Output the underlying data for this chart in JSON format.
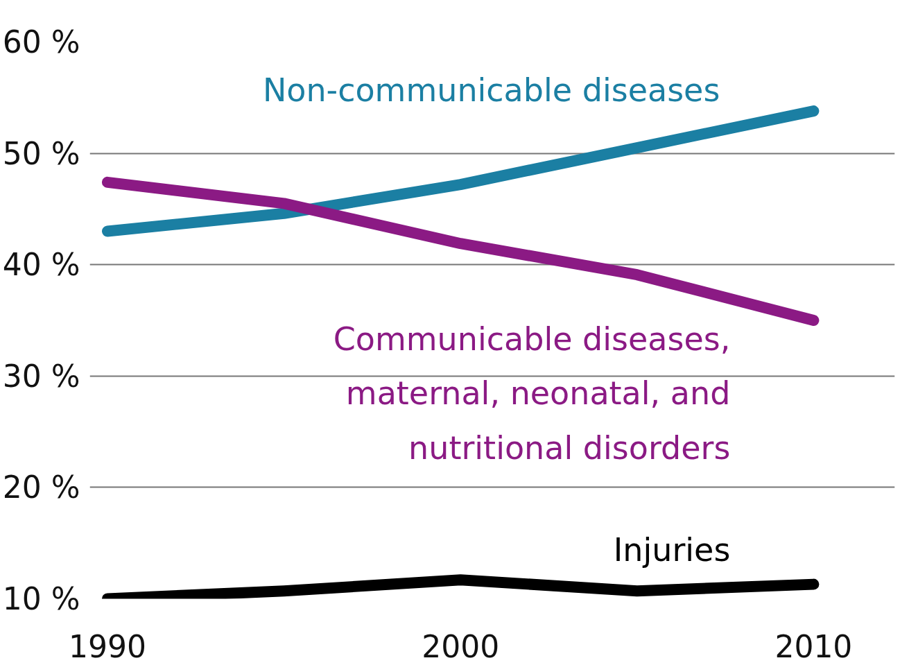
{
  "chart_data": {
    "type": "line",
    "x": [
      1990,
      1995,
      2000,
      2005,
      2010
    ],
    "series": [
      {
        "name": "Non-communicable diseases",
        "color": "#1b7fa3",
        "values": [
          43.0,
          44.6,
          47.2,
          50.5,
          53.8
        ]
      },
      {
        "name": "Communicable diseases,\nmaternal, neonatal, and\nnutritional disorders",
        "color": "#8b1a84",
        "values": [
          47.4,
          45.5,
          41.9,
          39.1,
          35.0
        ]
      },
      {
        "name": "Injuries",
        "color": "#000000",
        "values": [
          10.0,
          10.7,
          11.7,
          10.7,
          11.3
        ]
      }
    ],
    "xlim": [
      1989.5,
      2012.3
    ],
    "xticks": [
      1990,
      2000,
      2010
    ],
    "ylim": [
      10,
      60
    ],
    "yticks": [
      {
        "value": 10,
        "label": "10 %"
      },
      {
        "value": 20,
        "label": "20 %"
      },
      {
        "value": 30,
        "label": "30 %"
      },
      {
        "value": 40,
        "label": "40 %"
      },
      {
        "value": 50,
        "label": "50 %"
      },
      {
        "value": 60,
        "label": "60 %"
      }
    ],
    "grid": "y",
    "marker": "none",
    "line_style": "solid"
  }
}
